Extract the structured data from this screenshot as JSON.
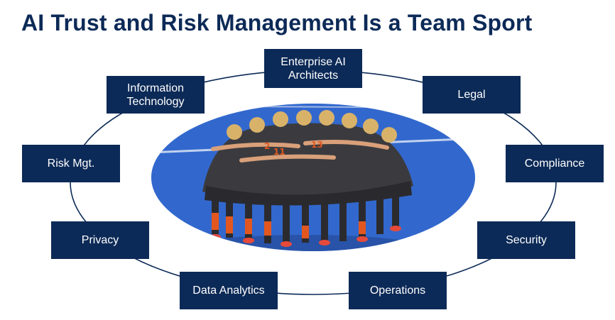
{
  "title": "AI Trust and Risk Management Is a Team Sport",
  "center_image": {
    "description_icon": "team-huddle-photo",
    "colors": {
      "field": "#2f63c8",
      "jersey": "#3b3b3f",
      "sock": "#e2571f"
    }
  },
  "colors": {
    "box": "#0c2a57",
    "box_text": "#ffffff",
    "ring": "#0c2a57",
    "title": "#0c2a57"
  },
  "roles": [
    {
      "id": "enterprise-ai-architects",
      "label": "Enterprise AI\nArchitects"
    },
    {
      "id": "legal",
      "label": "Legal"
    },
    {
      "id": "compliance",
      "label": "Compliance"
    },
    {
      "id": "security",
      "label": "Security"
    },
    {
      "id": "operations",
      "label": "Operations"
    },
    {
      "id": "data-analytics",
      "label": "Data Analytics"
    },
    {
      "id": "privacy",
      "label": "Privacy"
    },
    {
      "id": "risk-mgt",
      "label": "Risk Mgt."
    },
    {
      "id": "information-technology",
      "label": "Information\nTechnology"
    }
  ]
}
